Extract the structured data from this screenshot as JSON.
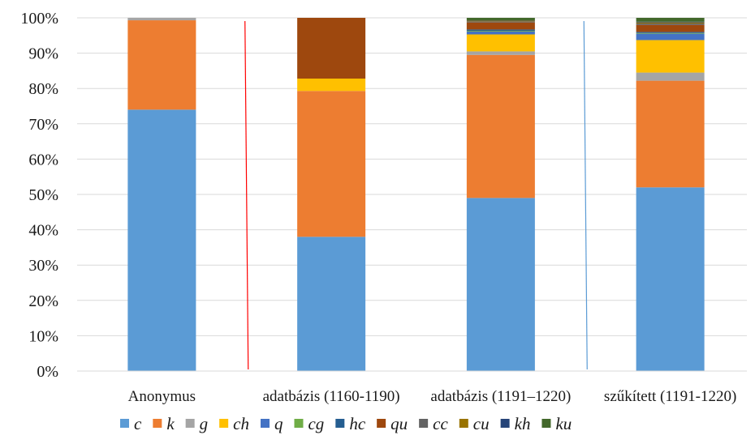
{
  "chart_data": {
    "type": "bar",
    "stacked": "percent",
    "title": "",
    "xlabel": "",
    "ylabel": "",
    "ylim": [
      0,
      100
    ],
    "yticks": [
      "0%",
      "10%",
      "20%",
      "30%",
      "40%",
      "50%",
      "60%",
      "70%",
      "80%",
      "90%",
      "100%"
    ],
    "categories": [
      "Anonymus",
      "adatbázis (1160-1190)",
      "adatbázis (1191–1220)",
      "szűkített (1191-1220)"
    ],
    "legend_position": "bottom",
    "grid": "horizontal",
    "series": [
      {
        "name": "c",
        "color": "#5b9bd5",
        "values": [
          74.0,
          38.0,
          49.0,
          52.0
        ]
      },
      {
        "name": "k",
        "color": "#ed7d31",
        "values": [
          25.3,
          41.3,
          40.5,
          30.2
        ]
      },
      {
        "name": "g",
        "color": "#a5a5a5",
        "values": [
          0.7,
          0.0,
          1.0,
          2.3
        ]
      },
      {
        "name": "ch",
        "color": "#ffc000",
        "values": [
          0.0,
          3.5,
          4.8,
          9.2
        ]
      },
      {
        "name": "q",
        "color": "#4472c4",
        "values": [
          0.0,
          0.0,
          0.8,
          1.8
        ]
      },
      {
        "name": "cg",
        "color": "#70ad47",
        "values": [
          0.0,
          0.0,
          0.2,
          0.2
        ]
      },
      {
        "name": "hc",
        "color": "#255e91",
        "values": [
          0.0,
          0.0,
          0.4,
          0.3
        ]
      },
      {
        "name": "qu",
        "color": "#9e480e",
        "values": [
          0.0,
          17.2,
          2.0,
          2.0
        ]
      },
      {
        "name": "cc",
        "color": "#636363",
        "values": [
          0.0,
          0.0,
          0.3,
          0.4
        ]
      },
      {
        "name": "cu",
        "color": "#997300",
        "values": [
          0.0,
          0.0,
          0.2,
          0.3
        ]
      },
      {
        "name": "kh",
        "color": "#264478",
        "values": [
          0.0,
          0.0,
          0.1,
          0.2
        ]
      },
      {
        "name": "ku",
        "color": "#43682b",
        "values": [
          0.0,
          0.0,
          0.7,
          1.1
        ]
      }
    ],
    "separators": [
      {
        "between": [
          0,
          1
        ],
        "color": "#ff0000"
      },
      {
        "between": [
          2,
          3
        ],
        "color": "#5b9bd5"
      }
    ]
  }
}
